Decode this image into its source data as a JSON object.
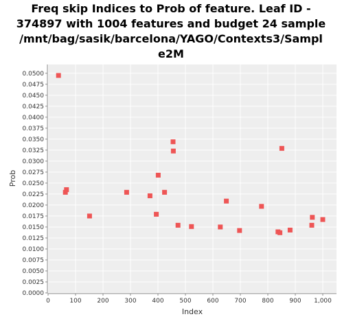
{
  "chart_data": {
    "type": "scatter",
    "title_lines": [
      "Freq skip Indices to Prob of feature. Leaf ID -",
      "374897 with 1004 features and budget 24 sample",
      "/mnt/bag/sasik/barcelona/YAGO/Contexts3/Sampl",
      "e2M"
    ],
    "xlabel": "Index",
    "ylabel": "Prob",
    "xlim": [
      0,
      1050
    ],
    "ylim": [
      0,
      0.052
    ],
    "x_ticks": [
      0,
      100,
      200,
      300,
      400,
      500,
      600,
      700,
      800,
      900,
      1000
    ],
    "x_tick_labels": [
      "0",
      "100",
      "200",
      "300",
      "400",
      "500",
      "600",
      "700",
      "800",
      "900",
      "1,000"
    ],
    "y_tick_labels": [
      "0.0000",
      "0.0025",
      "0.0050",
      "0.0075",
      "0.0100",
      "0.0125",
      "0.0150",
      "0.0175",
      "0.0200",
      "0.0225",
      "0.0250",
      "0.0275",
      "0.0300",
      "0.0325",
      "0.0350",
      "0.0375",
      "0.0400",
      "0.0425",
      "0.0450",
      "0.0475",
      "0.0500"
    ],
    "grid": true,
    "marker_color": "#ee5555",
    "points": [
      {
        "x": 38,
        "y": 0.0495
      },
      {
        "x": 63,
        "y": 0.0229
      },
      {
        "x": 67,
        "y": 0.0235
      },
      {
        "x": 151,
        "y": 0.0175
      },
      {
        "x": 286,
        "y": 0.0229
      },
      {
        "x": 371,
        "y": 0.0221
      },
      {
        "x": 394,
        "y": 0.0179
      },
      {
        "x": 401,
        "y": 0.0268
      },
      {
        "x": 424,
        "y": 0.0229
      },
      {
        "x": 455,
        "y": 0.0344
      },
      {
        "x": 456,
        "y": 0.0323
      },
      {
        "x": 473,
        "y": 0.0154
      },
      {
        "x": 522,
        "y": 0.0151
      },
      {
        "x": 627,
        "y": 0.015
      },
      {
        "x": 649,
        "y": 0.0209
      },
      {
        "x": 697,
        "y": 0.0142
      },
      {
        "x": 777,
        "y": 0.0197
      },
      {
        "x": 837,
        "y": 0.0139
      },
      {
        "x": 844,
        "y": 0.0137
      },
      {
        "x": 851,
        "y": 0.0329
      },
      {
        "x": 881,
        "y": 0.0143
      },
      {
        "x": 960,
        "y": 0.0154
      },
      {
        "x": 962,
        "y": 0.0172
      },
      {
        "x": 1000,
        "y": 0.0167
      }
    ]
  }
}
